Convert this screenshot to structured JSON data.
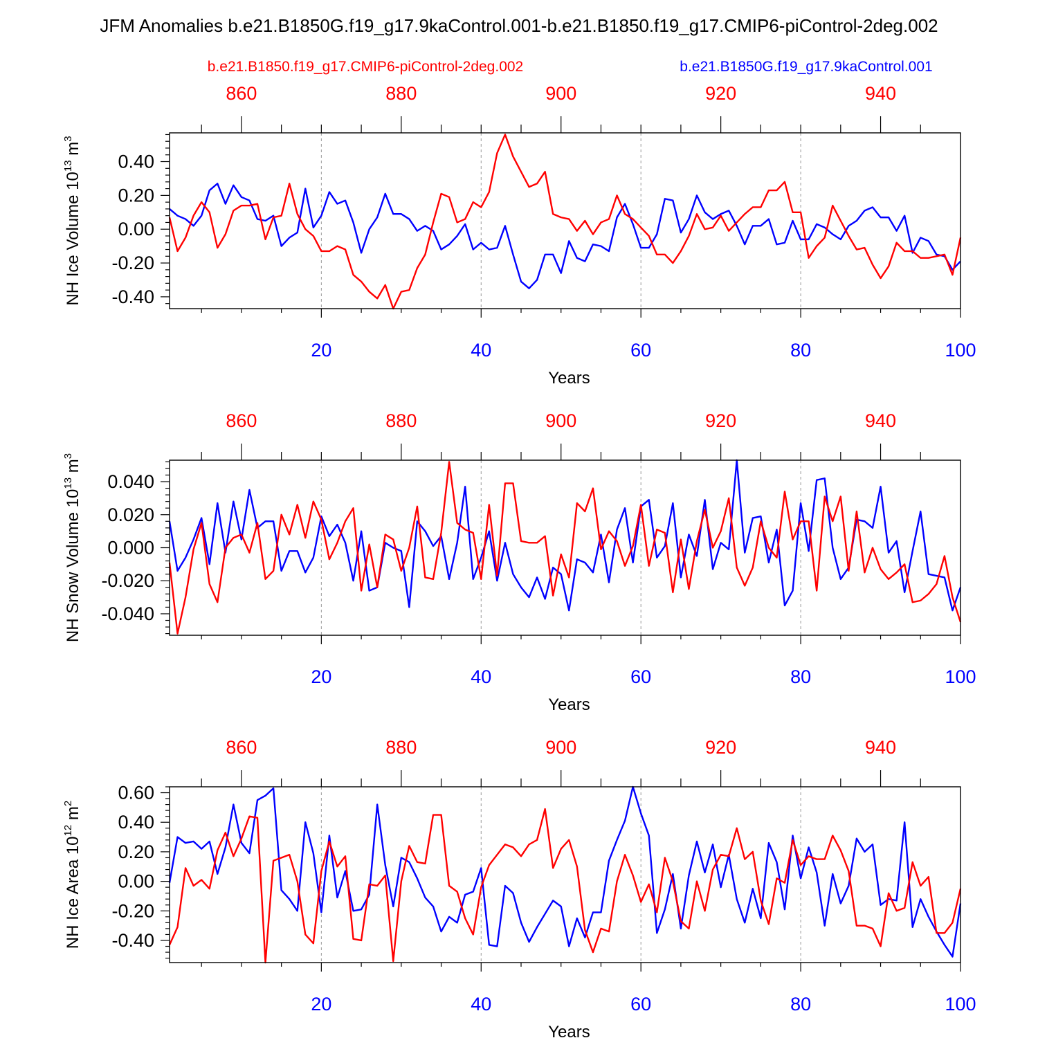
{
  "title": "JFM Anomalies b.e21.B1850G.f19_g17.9kaControl.001-b.e21.B1850.f19_g17.CMIP6-piControl-2deg.002",
  "legend": {
    "red_label": "b.e21.B1850.f19_g17.CMIP6-piControl-2deg.002",
    "blue_label": "b.e21.B1850G.f19_g17.9kaControl.001"
  },
  "colors": {
    "red": "#ff0000",
    "blue": "#0000ff",
    "axis": "#000000",
    "grid": "#999999"
  },
  "chart_data": [
    {
      "type": "line",
      "ylabel_main": "NH Ice Volume 10",
      "ylabel_exp": "13",
      "ylabel_unit": " m",
      "ylabel_unit_exp": "3",
      "xlabel": "Years",
      "xlim": [
        1,
        100
      ],
      "ylim": [
        -0.47,
        0.57
      ],
      "yticks": [
        -0.4,
        -0.2,
        0.0,
        0.2,
        0.4
      ],
      "ytick_labels": [
        "-0.40",
        "-0.20",
        "0.00",
        "0.20",
        "0.40"
      ],
      "xticks": [
        20,
        40,
        60,
        80,
        100
      ],
      "xtick_labels": [
        "20",
        "40",
        "60",
        "80",
        "100"
      ],
      "top_ticks": [
        860,
        880,
        900,
        920,
        940
      ],
      "top_tick_labels": [
        "860",
        "880",
        "900",
        "920",
        "940"
      ],
      "top_offset": 850,
      "series": [
        {
          "name": "b.e21.B1850G.f19_g17.9kaControl.001",
          "color": "blue",
          "values": [
            0.12,
            0.08,
            0.06,
            0.02,
            0.08,
            0.23,
            0.27,
            0.15,
            0.26,
            0.19,
            0.17,
            0.06,
            0.05,
            0.08,
            -0.1,
            -0.05,
            -0.02,
            0.24,
            0.01,
            0.08,
            0.22,
            0.15,
            0.17,
            0.04,
            -0.14,
            0.0,
            0.07,
            0.21,
            0.09,
            0.09,
            0.06,
            -0.01,
            0.02,
            -0.01,
            -0.12,
            -0.09,
            -0.04,
            0.03,
            -0.12,
            -0.08,
            -0.12,
            -0.11,
            0.02,
            -0.15,
            -0.31,
            -0.35,
            -0.3,
            -0.15,
            -0.15,
            -0.26,
            -0.07,
            -0.17,
            -0.19,
            -0.09,
            -0.1,
            -0.13,
            0.07,
            0.15,
            0.03,
            -0.11,
            -0.11,
            -0.03,
            0.18,
            0.17,
            -0.02,
            0.06,
            0.2,
            0.1,
            0.06,
            0.09,
            0.11,
            0.02,
            -0.09,
            0.02,
            0.02,
            0.06,
            -0.09,
            -0.08,
            0.05,
            -0.06,
            -0.06,
            0.03,
            0.01,
            -0.03,
            -0.06,
            0.02,
            0.05,
            0.11,
            0.13,
            0.07,
            0.07,
            -0.01,
            0.08,
            -0.14,
            -0.05,
            -0.07,
            -0.15,
            -0.16,
            -0.24,
            -0.19
          ]
        },
        {
          "name": "b.e21.B1850.f19_g17.CMIP6-piControl-2deg.002",
          "color": "red",
          "values": [
            0.07,
            -0.13,
            -0.05,
            0.08,
            0.16,
            0.1,
            -0.11,
            -0.03,
            0.11,
            0.14,
            0.14,
            0.15,
            -0.06,
            0.07,
            0.08,
            0.27,
            0.09,
            0.0,
            -0.04,
            -0.13,
            -0.13,
            -0.1,
            -0.12,
            -0.27,
            -0.31,
            -0.37,
            -0.41,
            -0.33,
            -0.47,
            -0.37,
            -0.36,
            -0.23,
            -0.15,
            0.04,
            0.21,
            0.19,
            0.04,
            0.06,
            0.16,
            0.13,
            0.22,
            0.45,
            0.56,
            0.43,
            0.34,
            0.25,
            0.27,
            0.34,
            0.09,
            0.07,
            0.06,
            -0.01,
            0.05,
            -0.03,
            0.04,
            0.06,
            0.2,
            0.09,
            0.06,
            0.01,
            -0.04,
            -0.15,
            -0.15,
            -0.2,
            -0.13,
            -0.04,
            0.09,
            0.0,
            0.01,
            0.08,
            -0.01,
            0.04,
            0.09,
            0.13,
            0.13,
            0.23,
            0.23,
            0.28,
            0.1,
            0.1,
            -0.17,
            -0.1,
            -0.05,
            0.14,
            0.05,
            -0.04,
            -0.12,
            -0.11,
            -0.21,
            -0.29,
            -0.22,
            -0.08,
            -0.13,
            -0.13,
            -0.17,
            -0.17,
            -0.16,
            -0.15,
            -0.27,
            -0.05
          ]
        }
      ]
    },
    {
      "type": "line",
      "ylabel_main": "NH Snow Volume 10",
      "ylabel_exp": "13",
      "ylabel_unit": " m",
      "ylabel_unit_exp": "3",
      "xlabel": "Years",
      "xlim": [
        1,
        100
      ],
      "ylim": [
        -0.053,
        0.053
      ],
      "yticks": [
        -0.04,
        -0.02,
        0.0,
        0.02,
        0.04
      ],
      "ytick_labels": [
        "-0.040",
        "-0.020",
        "0.000",
        "0.020",
        "0.040"
      ],
      "xticks": [
        20,
        40,
        60,
        80,
        100
      ],
      "xtick_labels": [
        "20",
        "40",
        "60",
        "80",
        "100"
      ],
      "top_ticks": [
        860,
        880,
        900,
        920,
        940
      ],
      "top_tick_labels": [
        "860",
        "880",
        "900",
        "920",
        "940"
      ],
      "top_offset": 850,
      "series": [
        {
          "name": "b.e21.B1850G.f19_g17.9kaControl.001",
          "color": "blue",
          "values": [
            0.016,
            -0.014,
            -0.006,
            0.005,
            0.018,
            -0.01,
            0.027,
            -0.003,
            0.028,
            0.005,
            0.035,
            0.012,
            0.016,
            0.016,
            -0.014,
            -0.002,
            -0.002,
            -0.015,
            -0.006,
            0.019,
            0.007,
            0.014,
            0.003,
            -0.02,
            0.01,
            -0.026,
            -0.024,
            0.003,
            0.0,
            -0.002,
            -0.036,
            0.016,
            0.01,
            0.001,
            0.007,
            -0.019,
            0.003,
            0.037,
            -0.019,
            -0.006,
            0.01,
            -0.02,
            0.003,
            -0.016,
            -0.024,
            -0.03,
            -0.018,
            -0.031,
            -0.012,
            -0.016,
            -0.038,
            -0.007,
            -0.009,
            -0.015,
            0.008,
            -0.021,
            0.011,
            0.024,
            -0.009,
            0.025,
            0.029,
            -0.006,
            0.001,
            0.027,
            -0.018,
            0.008,
            -0.005,
            0.029,
            -0.013,
            0.003,
            -0.001,
            0.053,
            -0.003,
            0.018,
            0.019,
            -0.009,
            0.011,
            -0.035,
            -0.026,
            0.027,
            -0.002,
            0.041,
            0.042,
            0.0,
            -0.019,
            -0.012,
            0.017,
            0.016,
            0.012,
            0.037,
            -0.003,
            0.004,
            -0.027,
            -0.002,
            0.022,
            -0.016,
            -0.017,
            -0.018,
            -0.038,
            -0.024
          ]
        },
        {
          "name": "b.e21.B1850.f19_g17.CMIP6-piControl-2deg.002",
          "color": "red",
          "values": [
            -0.009,
            -0.052,
            -0.03,
            -0.001,
            0.015,
            -0.022,
            -0.033,
            0.0,
            0.006,
            0.008,
            -0.003,
            0.015,
            -0.019,
            -0.014,
            0.02,
            0.008,
            0.026,
            0.006,
            0.028,
            0.017,
            -0.007,
            0.003,
            0.016,
            0.024,
            -0.026,
            0.002,
            -0.024,
            0.008,
            0.005,
            -0.014,
            0.0,
            0.025,
            -0.018,
            -0.019,
            0.009,
            0.052,
            0.015,
            0.011,
            0.009,
            -0.019,
            0.026,
            -0.017,
            0.039,
            0.039,
            0.004,
            0.003,
            0.003,
            0.007,
            -0.029,
            -0.004,
            -0.018,
            0.027,
            0.022,
            0.036,
            -0.001,
            0.01,
            0.004,
            -0.011,
            0.001,
            0.026,
            -0.011,
            0.011,
            0.009,
            -0.027,
            0.005,
            -0.025,
            0.004,
            0.023,
            0.0,
            0.01,
            0.03,
            -0.012,
            -0.023,
            -0.012,
            0.016,
            0.0,
            -0.006,
            0.034,
            0.005,
            0.016,
            0.016,
            -0.026,
            0.031,
            0.016,
            0.031,
            -0.014,
            0.022,
            -0.015,
            0.0,
            -0.013,
            -0.019,
            -0.015,
            -0.01,
            -0.033,
            -0.032,
            -0.028,
            -0.022,
            -0.005,
            -0.03,
            -0.045
          ]
        }
      ]
    },
    {
      "type": "line",
      "ylabel_main": "NH Ice Area 10",
      "ylabel_exp": "12",
      "ylabel_unit": " m",
      "ylabel_unit_exp": "2",
      "xlabel": "Years",
      "xlim": [
        1,
        100
      ],
      "ylim": [
        -0.55,
        0.64
      ],
      "yticks": [
        -0.4,
        -0.2,
        0.0,
        0.2,
        0.4,
        0.6
      ],
      "ytick_labels": [
        "-0.40",
        "-0.20",
        "0.00",
        "0.20",
        "0.40",
        "0.60"
      ],
      "xticks": [
        20,
        40,
        60,
        80,
        100
      ],
      "xtick_labels": [
        "20",
        "40",
        "60",
        "80",
        "100"
      ],
      "top_ticks": [
        860,
        880,
        900,
        920,
        940
      ],
      "top_tick_labels": [
        "860",
        "880",
        "900",
        "920",
        "940"
      ],
      "top_offset": 850,
      "series": [
        {
          "name": "b.e21.B1850G.f19_g17.9kaControl.001",
          "color": "blue",
          "values": [
            -0.01,
            0.3,
            0.26,
            0.27,
            0.22,
            0.27,
            0.05,
            0.23,
            0.52,
            0.26,
            0.19,
            0.55,
            0.58,
            0.63,
            -0.06,
            -0.12,
            -0.2,
            0.4,
            0.19,
            -0.21,
            0.31,
            -0.11,
            0.07,
            -0.2,
            -0.19,
            -0.09,
            0.52,
            0.11,
            -0.17,
            0.16,
            0.13,
            0.02,
            -0.11,
            -0.17,
            -0.34,
            -0.24,
            -0.28,
            -0.09,
            -0.07,
            0.09,
            -0.43,
            -0.44,
            -0.03,
            -0.08,
            -0.28,
            -0.41,
            -0.31,
            -0.22,
            -0.13,
            -0.17,
            -0.44,
            -0.25,
            -0.38,
            -0.21,
            -0.21,
            0.14,
            0.28,
            0.41,
            0.64,
            0.46,
            0.31,
            -0.35,
            -0.19,
            0.05,
            -0.32,
            0.04,
            0.27,
            0.06,
            0.25,
            -0.04,
            0.18,
            -0.12,
            -0.28,
            -0.05,
            -0.25,
            0.26,
            0.13,
            -0.19,
            0.31,
            0.02,
            0.23,
            0.06,
            -0.3,
            0.05,
            -0.15,
            -0.03,
            0.29,
            0.2,
            0.25,
            -0.16,
            -0.12,
            -0.13,
            0.4,
            -0.31,
            -0.12,
            -0.24,
            -0.34,
            -0.43,
            -0.51,
            -0.15
          ]
        },
        {
          "name": "b.e21.B1850.f19_g17.CMIP6-piControl-2deg.002",
          "color": "red",
          "values": [
            -0.43,
            -0.31,
            0.09,
            -0.03,
            0.01,
            -0.05,
            0.21,
            0.33,
            0.17,
            0.29,
            0.44,
            0.43,
            -0.55,
            0.14,
            0.16,
            0.18,
            0.0,
            -0.36,
            -0.42,
            0.07,
            0.27,
            0.1,
            0.17,
            -0.39,
            -0.4,
            -0.02,
            -0.03,
            0.04,
            -0.54,
            0.0,
            0.24,
            0.13,
            0.12,
            0.45,
            0.45,
            -0.03,
            -0.07,
            -0.25,
            -0.36,
            -0.04,
            0.11,
            0.18,
            0.25,
            0.23,
            0.17,
            0.25,
            0.28,
            0.49,
            0.09,
            0.22,
            0.28,
            0.1,
            -0.33,
            -0.48,
            -0.32,
            -0.34,
            0.0,
            0.18,
            0.04,
            -0.14,
            -0.02,
            -0.21,
            0.16,
            0.0,
            -0.27,
            -0.32,
            0.0,
            -0.2,
            0.08,
            0.18,
            0.17,
            0.36,
            0.15,
            0.2,
            -0.13,
            -0.29,
            0.02,
            -0.01,
            0.28,
            0.11,
            0.17,
            0.15,
            0.15,
            0.31,
            0.21,
            0.07,
            -0.3,
            -0.3,
            -0.32,
            -0.44,
            -0.08,
            -0.2,
            -0.18,
            0.13,
            -0.03,
            0.03,
            -0.35,
            -0.35,
            -0.28,
            -0.05
          ]
        }
      ]
    }
  ]
}
